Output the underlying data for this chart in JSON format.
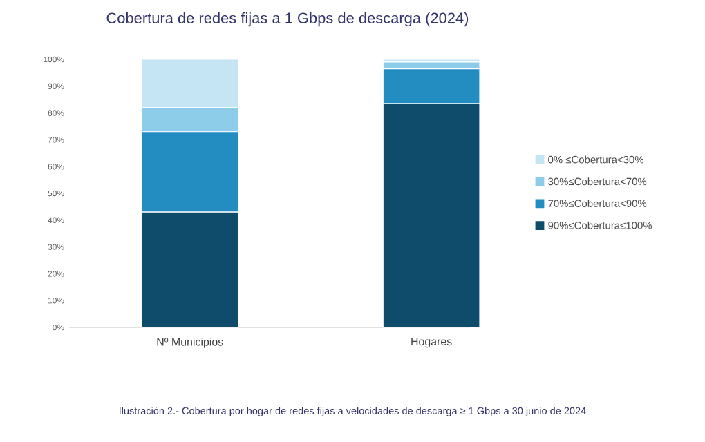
{
  "chart_data": {
    "type": "bar",
    "stacked": true,
    "title": "Cobertura de redes fijas a 1 Gbps de descarga (2024)",
    "categories": [
      "Nº Municipios",
      "Hogares"
    ],
    "series": [
      {
        "name": "90%≤Cobertura≤100%",
        "color": "#0f4c6b",
        "values": [
          43,
          83.5
        ]
      },
      {
        "name": "70%≤Cobertura<90%",
        "color": "#238dc1",
        "values": [
          30,
          13
        ]
      },
      {
        "name": "30%≤Cobertura<70%",
        "color": "#8dcdea",
        "values": [
          9,
          2.5
        ]
      },
      {
        "name": "0% ≤Cobertura<30%",
        "color": "#c5e5f5",
        "values": [
          18,
          1
        ]
      }
    ],
    "ylim": [
      0,
      100
    ],
    "yticks": [
      {
        "value": 0,
        "label": "0%"
      },
      {
        "value": 10,
        "label": "10%"
      },
      {
        "value": 20,
        "label": "20%"
      },
      {
        "value": 30,
        "label": "30%"
      },
      {
        "value": 40,
        "label": "40%"
      },
      {
        "value": 50,
        "label": "50%"
      },
      {
        "value": 60,
        "label": "60%"
      },
      {
        "value": 70,
        "label": "70%"
      },
      {
        "value": 80,
        "label": "80%"
      },
      {
        "value": 90,
        "label": "90%"
      },
      {
        "value": 100,
        "label": "100%"
      }
    ],
    "legend": "right",
    "grid": false,
    "annotations": [
      "Ilustración 2.- Cobertura por hogar de redes fijas a velocidades de descarga ≥ 1 Gbps a 30 junio de 2024"
    ]
  }
}
